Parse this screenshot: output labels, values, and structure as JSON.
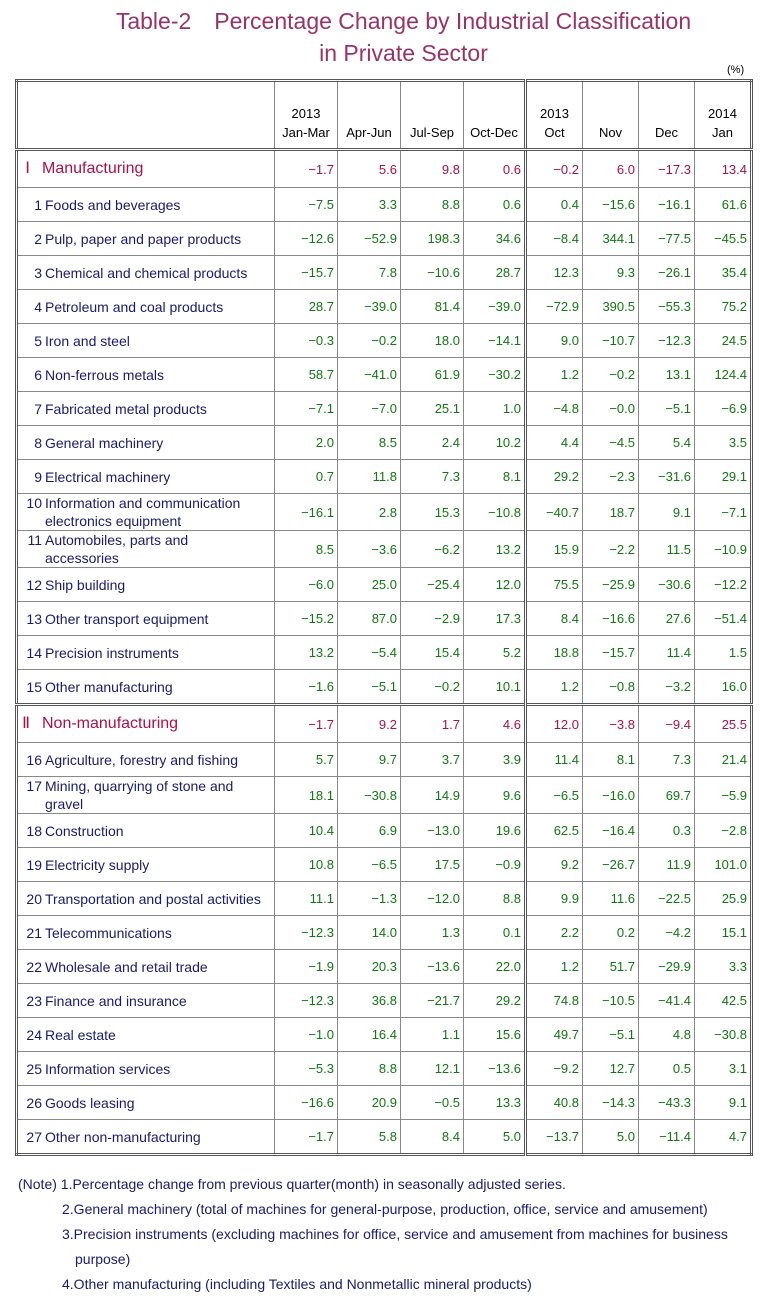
{
  "title": [
    "Table-2　Percentage Change by Industrial Classification",
    "in Private Sector"
  ],
  "unit": "(%)",
  "table": {
    "header": [
      {
        "year": "2013",
        "period": "Jan-Mar"
      },
      {
        "period": "Apr-Jun"
      },
      {
        "period": "Jul-Sep"
      },
      {
        "period": "Oct-Dec"
      },
      {
        "year": "2013",
        "period": "Oct"
      },
      {
        "period": "Nov"
      },
      {
        "period": "Dec"
      },
      {
        "year": "2014",
        "period": "Jan"
      }
    ],
    "rows": [
      {
        "no": "Ⅰ",
        "label": "Manufacturing",
        "section": true,
        "values": [
          "−1.7",
          "5.6",
          "9.8",
          "0.6",
          "−0.2",
          "6.0",
          "−17.3",
          "13.4"
        ]
      },
      {
        "no": "1",
        "label": "Foods and beverages",
        "values": [
          "−7.5",
          "3.3",
          "8.8",
          "0.6",
          "0.4",
          "−15.6",
          "−16.1",
          "61.6"
        ]
      },
      {
        "no": "2",
        "label": "Pulp, paper and paper products",
        "values": [
          "−12.6",
          "−52.9",
          "198.3",
          "34.6",
          "−8.4",
          "344.1",
          "−77.5",
          "−45.5"
        ]
      },
      {
        "no": "3",
        "label": "Chemical and chemical products",
        "values": [
          "−15.7",
          "7.8",
          "−10.6",
          "28.7",
          "12.3",
          "9.3",
          "−26.1",
          "35.4"
        ]
      },
      {
        "no": "4",
        "label": "Petroleum and coal products",
        "values": [
          "28.7",
          "−39.0",
          "81.4",
          "−39.0",
          "−72.9",
          "390.5",
          "−55.3",
          "75.2"
        ]
      },
      {
        "no": "5",
        "label": "Iron and steel",
        "values": [
          "−0.3",
          "−0.2",
          "18.0",
          "−14.1",
          "9.0",
          "−10.7",
          "−12.3",
          "24.5"
        ]
      },
      {
        "no": "6",
        "label": "Non-ferrous metals",
        "values": [
          "58.7",
          "−41.0",
          "61.9",
          "−30.2",
          "1.2",
          "−0.2",
          "13.1",
          "124.4"
        ]
      },
      {
        "no": "7",
        "label": "Fabricated metal products",
        "values": [
          "−7.1",
          "−7.0",
          "25.1",
          "1.0",
          "−4.8",
          "−0.0",
          "−5.1",
          "−6.9"
        ]
      },
      {
        "no": "8",
        "label": "General machinery",
        "values": [
          "2.0",
          "8.5",
          "2.4",
          "10.2",
          "4.4",
          "−4.5",
          "5.4",
          "3.5"
        ]
      },
      {
        "no": "9",
        "label": "Electrical machinery",
        "values": [
          "0.7",
          "11.8",
          "7.3",
          "8.1",
          "29.2",
          "−2.3",
          "−31.6",
          "29.1"
        ]
      },
      {
        "no": "10",
        "label": "Information and communication electronics equipment",
        "values": [
          "−16.1",
          "2.8",
          "15.3",
          "−10.8",
          "−40.7",
          "18.7",
          "9.1",
          "−7.1"
        ]
      },
      {
        "no": "11",
        "label": "Automobiles, parts and accessories",
        "values": [
          "8.5",
          "−3.6",
          "−6.2",
          "13.2",
          "15.9",
          "−2.2",
          "11.5",
          "−10.9"
        ]
      },
      {
        "no": "12",
        "label": "Ship building",
        "values": [
          "−6.0",
          "25.0",
          "−25.4",
          "12.0",
          "75.5",
          "−25.9",
          "−30.6",
          "−12.2"
        ]
      },
      {
        "no": "13",
        "label": "Other transport equipment",
        "values": [
          "−15.2",
          "87.0",
          "−2.9",
          "17.3",
          "8.4",
          "−16.6",
          "27.6",
          "−51.4"
        ]
      },
      {
        "no": "14",
        "label": "Precision instruments",
        "values": [
          "13.2",
          "−5.4",
          "15.4",
          "5.2",
          "18.8",
          "−15.7",
          "11.4",
          "1.5"
        ]
      },
      {
        "no": "15",
        "label": "Other manufacturing",
        "values": [
          "−1.6",
          "−5.1",
          "−0.2",
          "10.1",
          "1.2",
          "−0.8",
          "−3.2",
          "16.0"
        ]
      },
      {
        "no": "Ⅱ",
        "label": "Non-manufacturing",
        "section": true,
        "values": [
          "−1.7",
          "9.2",
          "1.7",
          "4.6",
          "12.0",
          "−3.8",
          "−9.4",
          "25.5"
        ]
      },
      {
        "no": "16",
        "label": "Agriculture, forestry and fishing",
        "values": [
          "5.7",
          "9.7",
          "3.7",
          "3.9",
          "11.4",
          "8.1",
          "7.3",
          "21.4"
        ]
      },
      {
        "no": "17",
        "label": "Mining, quarrying of stone and gravel",
        "values": [
          "18.1",
          "−30.8",
          "14.9",
          "9.6",
          "−6.5",
          "−16.0",
          "69.7",
          "−5.9"
        ]
      },
      {
        "no": "18",
        "label": "Construction",
        "values": [
          "10.4",
          "6.9",
          "−13.0",
          "19.6",
          "62.5",
          "−16.4",
          "0.3",
          "−2.8"
        ]
      },
      {
        "no": "19",
        "label": "Electricity supply",
        "values": [
          "10.8",
          "−6.5",
          "17.5",
          "−0.9",
          "9.2",
          "−26.7",
          "11.9",
          "101.0"
        ]
      },
      {
        "no": "20",
        "label": "Transportation and postal activities",
        "values": [
          "11.1",
          "−1.3",
          "−12.0",
          "8.8",
          "9.9",
          "11.6",
          "−22.5",
          "25.9"
        ]
      },
      {
        "no": "21",
        "label": "Telecommunications",
        "values": [
          "−12.3",
          "14.0",
          "1.3",
          "0.1",
          "2.2",
          "0.2",
          "−4.2",
          "15.1"
        ]
      },
      {
        "no": "22",
        "label": "Wholesale and retail trade",
        "values": [
          "−1.9",
          "20.3",
          "−13.6",
          "22.0",
          "1.2",
          "51.7",
          "−29.9",
          "3.3"
        ]
      },
      {
        "no": "23",
        "label": "Finance and insurance",
        "values": [
          "−12.3",
          "36.8",
          "−21.7",
          "29.2",
          "74.8",
          "−10.5",
          "−41.4",
          "42.5"
        ]
      },
      {
        "no": "24",
        "label": "Real estate",
        "values": [
          "−1.0",
          "16.4",
          "1.1",
          "15.6",
          "49.7",
          "−5.1",
          "4.8",
          "−30.8"
        ]
      },
      {
        "no": "25",
        "label": "Information services",
        "values": [
          "−5.3",
          "8.8",
          "12.1",
          "−13.6",
          "−9.2",
          "12.7",
          "0.5",
          "3.1"
        ]
      },
      {
        "no": "26",
        "label": "Goods leasing",
        "values": [
          "−16.6",
          "20.9",
          "−0.5",
          "13.3",
          "40.8",
          "−14.3",
          "−43.3",
          "9.1"
        ]
      },
      {
        "no": "27",
        "label": "Other non-manufacturing",
        "values": [
          "−1.7",
          "5.8",
          "8.4",
          "5.0",
          "−13.7",
          "5.0",
          "−11.4",
          "4.7"
        ]
      }
    ]
  },
  "notes": {
    "prefix": "(Note)",
    "items": [
      "1.Percentage change from previous quarter(month) in seasonally adjusted series.",
      "2.General machinery (total of machines for general-purpose, production, office, service and amusement)",
      "3.Precision instruments (excluding machines for office, service and amusement from machines for business purpose)",
      "4.Other manufacturing (including Textiles and Nonmetallic mineral products)"
    ]
  }
}
